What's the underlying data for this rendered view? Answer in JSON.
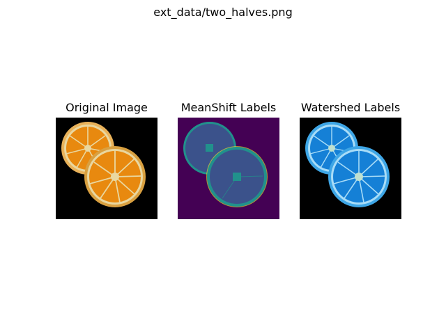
{
  "figure": {
    "suptitle": "ext_data/two_halves.png",
    "panels": [
      {
        "title": "Original Image"
      },
      {
        "title": "MeanShift Labels"
      },
      {
        "title": "Watershed Labels"
      }
    ]
  },
  "colors": {
    "background": "#000000",
    "orange_rind": "#d38a1c",
    "orange_flesh": "#e8890f",
    "orange_pith": "#e9d7a0",
    "meanshift_background": "#440154",
    "meanshift_fill": "#3b528b",
    "meanshift_edge": "#21918c",
    "meanshift_highlight": "#fde725",
    "watershed_fill": "#1580d6",
    "watershed_edge": "#a8dcf7",
    "watershed_center": "#bfe0d0"
  }
}
